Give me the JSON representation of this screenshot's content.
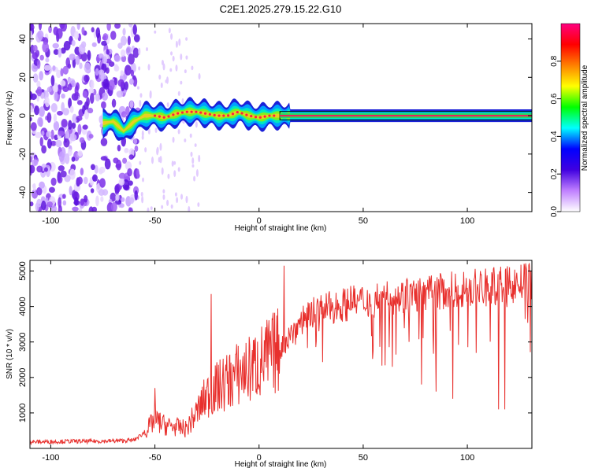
{
  "figure_title": "C2E1.2025.279.15.22.G10",
  "chart_data": [
    {
      "type": "heatmap",
      "xlabel": "Height of straight line (km)",
      "ylabel": "Frequency (Hz)",
      "xlim": [
        -110,
        131
      ],
      "ylim": [
        -50,
        48
      ],
      "xticks": [
        -100,
        -50,
        0,
        50,
        100
      ],
      "yticks": [
        -40,
        -20,
        0,
        20,
        40
      ],
      "grid": false,
      "colorbar": {
        "label": "Normalized spectral amplitude",
        "range": [
          0.0,
          1.0
        ],
        "ticks": [
          0.0,
          0.2,
          0.4,
          0.6,
          0.8
        ],
        "tick_labels": [
          "0.0",
          "0.2",
          "0.4",
          "0.6",
          "0.8"
        ],
        "colors": [
          "#ffffff",
          "#c080ff",
          "#4000e0",
          "#0000ff",
          "#00ffff",
          "#00ff00",
          "#ffff00",
          "#ff8000",
          "#ff0000",
          "#ff0080"
        ]
      },
      "noise_region_x": [
        -110,
        -60
      ],
      "signal_onset_x": -75,
      "ridge": {
        "x": [
          -75,
          -70,
          -65,
          -60,
          -55,
          -50,
          -45,
          -40,
          -35,
          -30,
          -25,
          -20,
          -15,
          -10,
          -5,
          0,
          5,
          10,
          20,
          50,
          90,
          131
        ],
        "frequency": [
          -4,
          -3,
          -8,
          -3,
          0,
          0,
          -1,
          1,
          2,
          2,
          1,
          0,
          0,
          2,
          0,
          -1,
          0,
          0,
          0,
          0,
          0,
          0
        ]
      }
    },
    {
      "type": "line",
      "xlabel": "Height of straight line (km)",
      "ylabel": "SNR (10 * v/v)",
      "xlim": [
        -110,
        131
      ],
      "ylim": [
        0,
        5300
      ],
      "xticks": [
        -100,
        -50,
        0,
        50,
        100
      ],
      "yticks": [
        1000,
        2000,
        3000,
        4000,
        5000
      ],
      "grid": false,
      "color": "#e8302d",
      "series": [
        {
          "x": [
            -110,
            -100,
            -90,
            -80,
            -70,
            -60,
            -55,
            -50,
            -45,
            -40,
            -35,
            -30,
            -25,
            -20,
            -15,
            -10,
            -5,
            0,
            5,
            10,
            15,
            20,
            25,
            30,
            40,
            50,
            60,
            70,
            80,
            90,
            100,
            110,
            120,
            131
          ],
          "values": [
            180,
            190,
            200,
            200,
            210,
            230,
            450,
            800,
            650,
            600,
            550,
            1000,
            1500,
            1700,
            1900,
            2100,
            2200,
            2400,
            2600,
            2800,
            3200,
            3600,
            3850,
            3900,
            4050,
            4150,
            4250,
            4300,
            4350,
            4450,
            4500,
            4550,
            4600,
            4700
          ]
        }
      ],
      "spikes": [
        {
          "x": -23,
          "value": 4350
        },
        {
          "x": 12,
          "value": 5150
        },
        {
          "x": -50,
          "value": 1700
        }
      ],
      "dips": [
        {
          "x": 64,
          "value": 2300
        },
        {
          "x": 78,
          "value": 1800
        },
        {
          "x": 85,
          "value": 1600
        },
        {
          "x": 93,
          "value": 1400
        },
        {
          "x": 115,
          "value": 1100
        },
        {
          "x": 118,
          "value": 1100
        }
      ]
    }
  ]
}
